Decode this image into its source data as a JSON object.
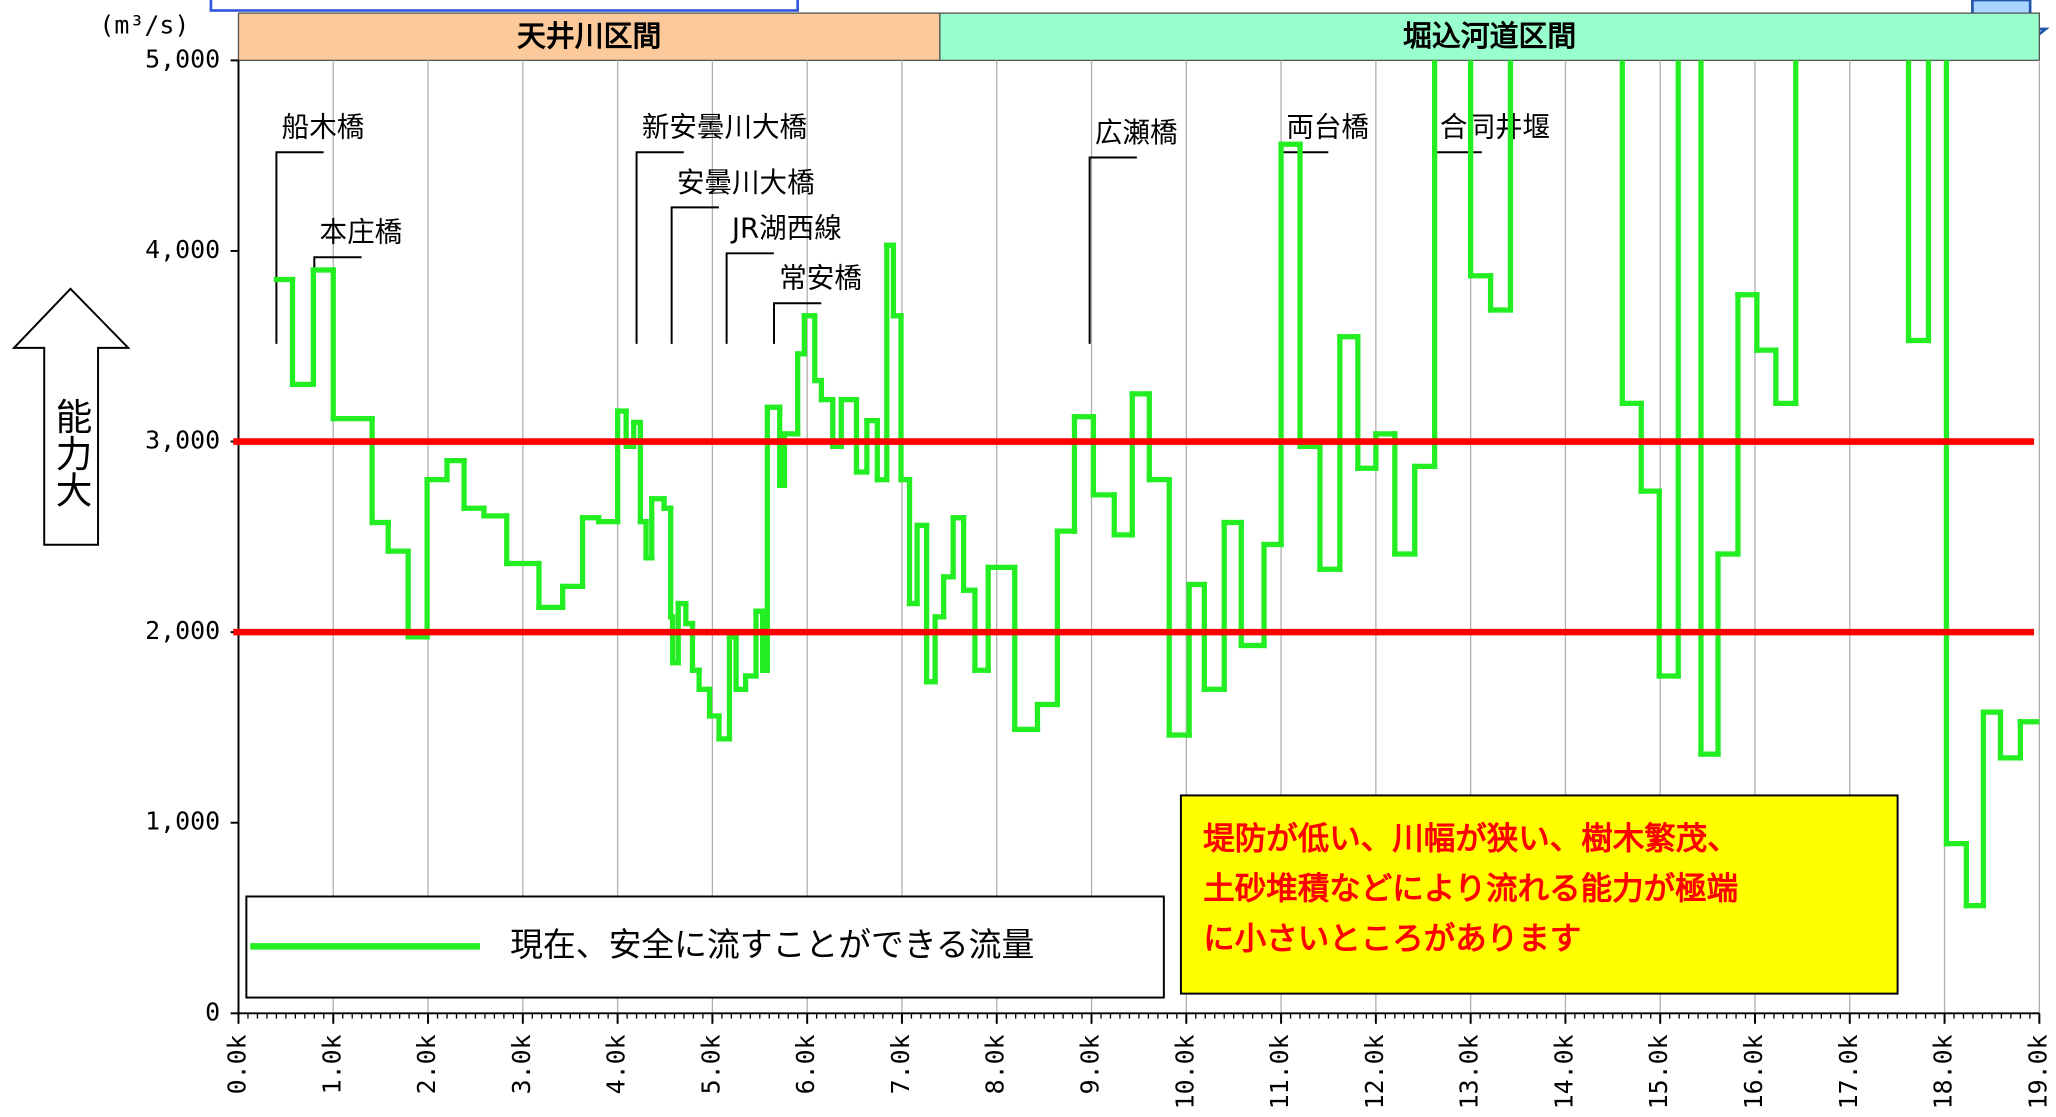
{
  "chart_data": {
    "type": "step",
    "unit": "(m³/s)",
    "y_label": "能力大",
    "xlim": [
      0,
      19
    ],
    "ylim": [
      0,
      5000
    ],
    "xticks": [
      {
        "value": 0,
        "label": "0.0k"
      },
      {
        "value": 1,
        "label": "1.0k"
      },
      {
        "value": 2,
        "label": "2.0k"
      },
      {
        "value": 3,
        "label": "3.0k"
      },
      {
        "value": 4,
        "label": "4.0k"
      },
      {
        "value": 5,
        "label": "5.0k"
      },
      {
        "value": 6,
        "label": "6.0k"
      },
      {
        "value": 7,
        "label": "7.0k"
      },
      {
        "value": 8,
        "label": "8.0k"
      },
      {
        "value": 9,
        "label": "9.0k"
      },
      {
        "value": 10,
        "label": "10.0k"
      },
      {
        "value": 11,
        "label": "11.0k"
      },
      {
        "value": 12,
        "label": "12.0k"
      },
      {
        "value": 13,
        "label": "13.0k"
      },
      {
        "value": 14,
        "label": "14.0k"
      },
      {
        "value": 15,
        "label": "15.0k"
      },
      {
        "value": 16,
        "label": "16.0k"
      },
      {
        "value": 17,
        "label": "17.0k"
      },
      {
        "value": 18,
        "label": "18.0k"
      },
      {
        "value": 19,
        "label": "19.0k"
      }
    ],
    "yticks": [
      0,
      {
        "value": 1000,
        "label": "1,000"
      },
      {
        "value": 2000,
        "label": "2,000"
      },
      {
        "value": 3000,
        "label": "3,000"
      },
      {
        "value": 4000,
        "label": "4,000"
      },
      {
        "value": 5000,
        "label": "5,000"
      }
    ],
    "grid": true,
    "sections": [
      {
        "label": "天井川区間",
        "start": 0,
        "end": 7.4,
        "color": "#fbc99a"
      },
      {
        "label": "堀込河道区間",
        "start": 7.4,
        "end": 19,
        "color": "#99ffcc"
      }
    ],
    "reference_lines": [
      {
        "value": 3000,
        "color": "#ff0000"
      },
      {
        "value": 2000,
        "color": "#ff0000"
      }
    ],
    "annotations": [
      {
        "label": "船木橋",
        "x": 0.4
      },
      {
        "label": "本庄橋",
        "x": 0.8
      },
      {
        "label": "新安曇川大橋",
        "x": 4.2
      },
      {
        "label": "安曇川大橋",
        "x": 4.57
      },
      {
        "label": "JR湖西線",
        "x": 5.15
      },
      {
        "label": "常安橋",
        "x": 5.65
      },
      {
        "label": "広瀬橋",
        "x": 8.98
      },
      {
        "label": "両台橋",
        "x": 11.0
      },
      {
        "label": "合同井堰",
        "x": 12.62
      }
    ],
    "series": [
      {
        "name": "現在、安全に流すことができる流量",
        "color": "#22ee22",
        "bins": [
          0.4,
          0.57,
          0.79,
          1.0,
          1.41,
          1.58,
          1.79,
          1.99,
          2.2,
          2.38,
          2.59,
          2.83,
          3.17,
          3.42,
          3.63,
          3.8,
          4.0,
          4.09,
          4.17,
          4.24,
          4.3,
          4.36,
          4.49,
          4.56,
          4.58,
          4.64,
          4.72,
          4.79,
          4.86,
          4.97,
          5.07,
          5.18,
          5.25,
          5.35,
          5.46,
          5.53,
          5.58,
          5.71,
          5.76,
          5.9,
          5.97,
          6.08,
          6.15,
          6.27,
          6.36,
          6.52,
          6.63,
          6.74,
          6.84,
          6.91,
          6.99,
          7.08,
          7.16,
          7.26,
          7.35,
          7.44,
          7.54,
          7.65,
          7.77,
          7.91,
          8.19,
          8.43,
          8.64,
          8.82,
          9.02,
          9.24,
          9.43,
          9.61,
          9.82,
          10.03,
          10.19,
          10.4,
          10.58,
          10.82,
          11.0,
          11.2,
          11.41,
          11.62,
          11.81,
          12.0,
          12.2,
          12.41,
          12.62,
          13.0,
          13.21,
          13.42,
          14.6,
          14.8,
          14.99,
          15.19,
          15.43,
          15.61,
          15.82,
          16.02,
          16.22,
          16.43,
          17.62,
          17.83,
          18.02,
          18.23,
          18.41,
          18.59,
          18.8,
          19.0
        ],
        "values": [
          3850,
          3300,
          3900,
          3120,
          2575,
          2425,
          1975,
          2800,
          2900,
          2650,
          2610,
          2360,
          2130,
          2240,
          2600,
          2580,
          3160,
          2975,
          3100,
          2580,
          2390,
          2700,
          2650,
          2080,
          1840,
          2150,
          2045,
          1800,
          1700,
          1560,
          1440,
          1975,
          1700,
          1770,
          2110,
          1800,
          3180,
          2770,
          3040,
          3460,
          3660,
          3320,
          3220,
          2975,
          3220,
          2840,
          3110,
          2800,
          4030,
          3660,
          2800,
          2150,
          2560,
          1740,
          2080,
          2290,
          2600,
          2220,
          1800,
          2340,
          1490,
          1620,
          2530,
          3130,
          2720,
          2510,
          3250,
          2800,
          1460,
          2250,
          1700,
          2575,
          1930,
          2460,
          4560,
          2975,
          2330,
          3550,
          2860,
          3040,
          2410,
          2870,
          5600,
          3870,
          3690,
          5600,
          3200,
          2740,
          1770,
          5600,
          1360,
          2410,
          3770,
          3480,
          3200,
          5600,
          3530,
          5600,
          890,
          565,
          1580,
          1340,
          1530
        ]
      }
    ],
    "note": [
      "堤防が低い、川幅が狭い、樹木繁茂、",
      "土砂堆積などにより流れる能力が極端",
      "に小さいところがあります"
    ]
  }
}
